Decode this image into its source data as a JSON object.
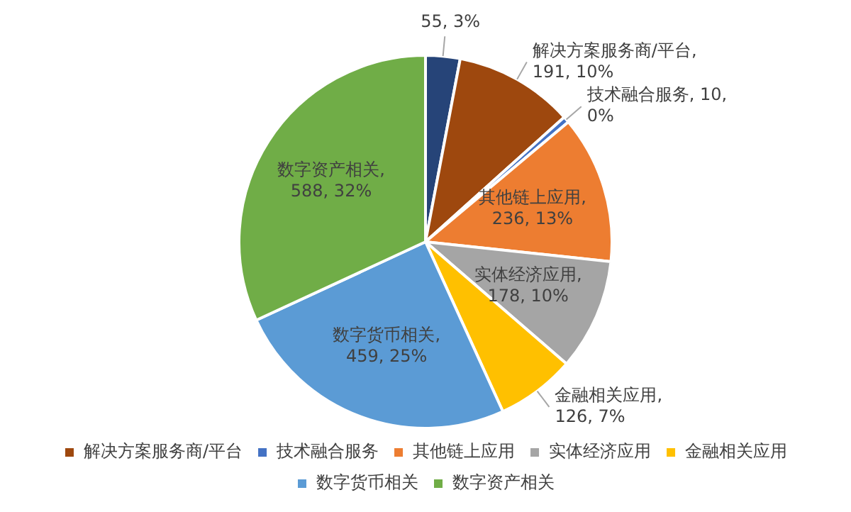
{
  "chart_data": {
    "type": "pie",
    "categories": [
      null,
      "解决方案服务商/平台",
      "技术融合服务",
      "其他链上应用",
      "实体经济应用",
      "金融相关应用",
      "数字货币相关",
      "数字资产相关"
    ],
    "values": [
      55,
      191,
      10,
      236,
      178,
      126,
      459,
      588
    ],
    "value_labels": [
      "55, 3%",
      "解决方案服务商/平台, 191, 10%",
      "技术融合服务, 10, 0%",
      "其他链上应用, 236, 13%",
      "实体经济应用, 178, 10%",
      "金融相关应用, 126, 7%",
      "数字货币相关, 459, 25%",
      "数字资产相关, 588, 32%"
    ],
    "colors": [
      "#264478",
      "#9e480e",
      "#4472c4",
      "#ed7d31",
      "#a5a5a5",
      "#ffc000",
      "#5b9bd5",
      "#70ad47"
    ],
    "legend": "bottom"
  }
}
